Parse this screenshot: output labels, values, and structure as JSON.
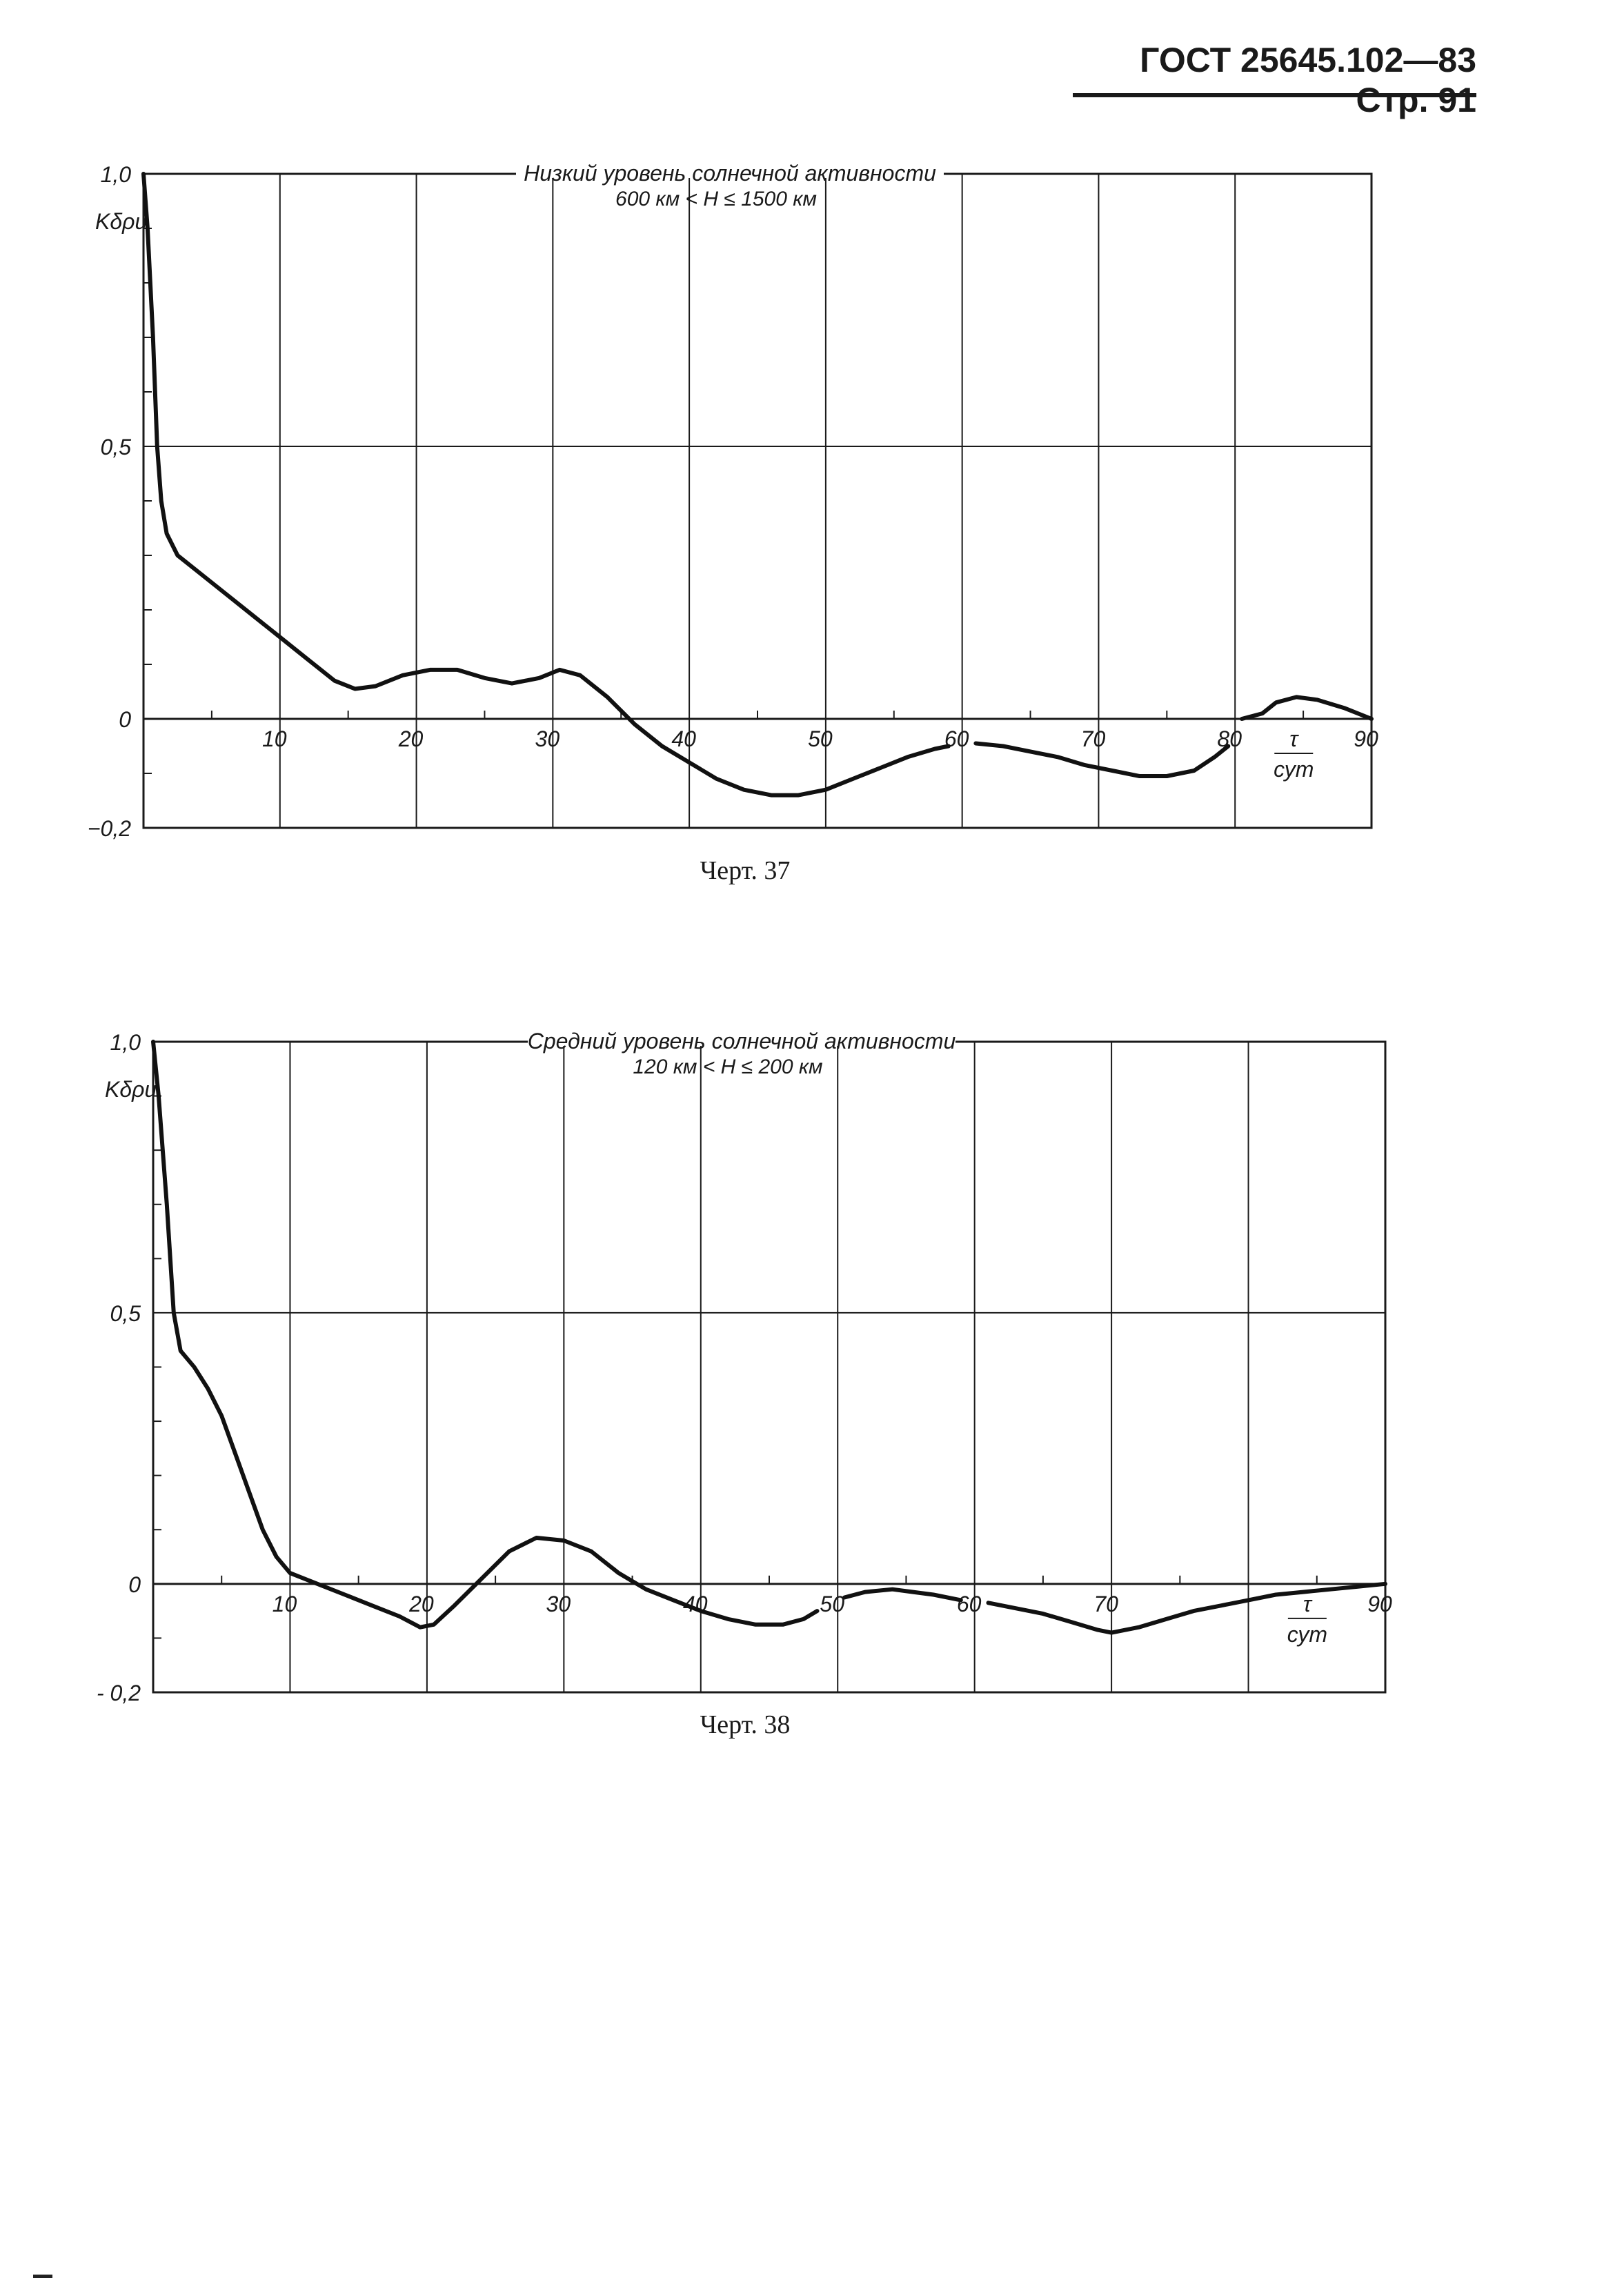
{
  "header": {
    "text": "ГОСТ 25645.102—83 Стр. 91"
  },
  "captions": [
    "Черт. 37",
    "Черт. 38"
  ],
  "chart_data": [
    {
      "type": "line",
      "title": "Низкий уровень солнечной активности",
      "subtitle": "600 км < H ≤ 1500 км",
      "ylabel": "Kδρи",
      "xlabel": "τ / сут",
      "xlim": [
        0,
        90
      ],
      "ylim": [
        -0.2,
        1.0
      ],
      "x_ticks": [
        10,
        20,
        30,
        40,
        50,
        60,
        70,
        80,
        90
      ],
      "y_ticks": [
        "1,0",
        "0,5",
        "0",
        "−0,2"
      ],
      "y_tick_values": [
        1.0,
        0.5,
        0,
        -0.2
      ],
      "grid": true,
      "series": [
        {
          "segments": [
            [
              [
                0,
                1.0
              ],
              [
                0.3,
                0.9
              ],
              [
                0.7,
                0.7
              ],
              [
                1,
                0.5
              ],
              [
                1.3,
                0.4
              ],
              [
                1.7,
                0.34
              ],
              [
                2.5,
                0.3
              ],
              [
                4,
                0.27
              ],
              [
                6,
                0.23
              ],
              [
                8,
                0.19
              ],
              [
                10,
                0.15
              ],
              [
                12,
                0.11
              ],
              [
                14,
                0.07
              ],
              [
                15.5,
                0.055
              ],
              [
                17,
                0.06
              ],
              [
                19,
                0.08
              ],
              [
                21,
                0.09
              ],
              [
                23,
                0.09
              ],
              [
                25,
                0.075
              ],
              [
                27,
                0.065
              ],
              [
                29,
                0.075
              ],
              [
                30.5,
                0.09
              ],
              [
                32,
                0.08
              ],
              [
                34,
                0.04
              ],
              [
                36,
                -0.01
              ],
              [
                38,
                -0.05
              ],
              [
                40,
                -0.08
              ],
              [
                42,
                -0.11
              ],
              [
                44,
                -0.13
              ],
              [
                46,
                -0.14
              ],
              [
                48,
                -0.14
              ],
              [
                50,
                -0.13
              ],
              [
                52,
                -0.11
              ],
              [
                54,
                -0.09
              ],
              [
                56,
                -0.07
              ],
              [
                58,
                -0.055
              ],
              [
                59,
                -0.05
              ]
            ],
            [
              [
                61,
                -0.045
              ],
              [
                63,
                -0.05
              ],
              [
                65,
                -0.06
              ],
              [
                67,
                -0.07
              ],
              [
                69,
                -0.085
              ],
              [
                71,
                -0.095
              ],
              [
                73,
                -0.105
              ],
              [
                75,
                -0.105
              ],
              [
                77,
                -0.095
              ],
              [
                78.5,
                -0.07
              ],
              [
                79.5,
                -0.05
              ]
            ],
            [
              [
                80.5,
                0
              ],
              [
                82,
                0.01
              ],
              [
                83,
                0.03
              ],
              [
                84.5,
                0.04
              ],
              [
                86,
                0.035
              ],
              [
                88,
                0.02
              ],
              [
                90,
                0
              ]
            ]
          ]
        }
      ]
    },
    {
      "type": "line",
      "title": "Средний уровень солнечной активности",
      "subtitle": "120 км < H ≤ 200 км",
      "ylabel": "Kδρи",
      "xlabel": "τ / сут",
      "xlim": [
        0,
        90
      ],
      "ylim": [
        -0.2,
        1.0
      ],
      "x_ticks": [
        10,
        20,
        30,
        40,
        50,
        60,
        70,
        90
      ],
      "y_ticks": [
        "1,0",
        "0,5",
        "0",
        "- 0,2"
      ],
      "y_tick_values": [
        1.0,
        0.5,
        0,
        -0.2
      ],
      "grid": true,
      "series": [
        {
          "segments": [
            [
              [
                0,
                1.0
              ],
              [
                0.4,
                0.9
              ],
              [
                1,
                0.7
              ],
              [
                1.5,
                0.5
              ],
              [
                2,
                0.43
              ],
              [
                3,
                0.4
              ],
              [
                4,
                0.36
              ],
              [
                5,
                0.31
              ],
              [
                6,
                0.24
              ],
              [
                7,
                0.17
              ],
              [
                8,
                0.1
              ],
              [
                9,
                0.05
              ],
              [
                10,
                0.02
              ],
              [
                12,
                0
              ],
              [
                14,
                -0.02
              ],
              [
                16,
                -0.04
              ],
              [
                18,
                -0.06
              ],
              [
                19.5,
                -0.08
              ],
              [
                20.5,
                -0.075
              ],
              [
                22,
                -0.04
              ],
              [
                24,
                0.01
              ],
              [
                26,
                0.06
              ],
              [
                28,
                0.085
              ],
              [
                30,
                0.08
              ],
              [
                32,
                0.06
              ],
              [
                34,
                0.02
              ],
              [
                36,
                -0.01
              ],
              [
                38,
                -0.03
              ],
              [
                40,
                -0.05
              ],
              [
                42,
                -0.065
              ],
              [
                44,
                -0.075
              ],
              [
                46,
                -0.075
              ],
              [
                47.5,
                -0.065
              ],
              [
                48.5,
                -0.05
              ]
            ],
            [
              [
                50.5,
                -0.025
              ],
              [
                52,
                -0.015
              ],
              [
                54,
                -0.01
              ],
              [
                55.5,
                -0.015
              ],
              [
                57,
                -0.02
              ],
              [
                59,
                -0.03
              ]
            ],
            [
              [
                61,
                -0.035
              ],
              [
                63,
                -0.045
              ],
              [
                65,
                -0.055
              ],
              [
                67,
                -0.07
              ],
              [
                69,
                -0.085
              ],
              [
                70,
                -0.09
              ],
              [
                72,
                -0.08
              ],
              [
                74,
                -0.065
              ],
              [
                76,
                -0.05
              ],
              [
                78,
                -0.04
              ],
              [
                80,
                -0.03
              ],
              [
                82,
                -0.02
              ],
              [
                84,
                -0.015
              ],
              [
                86,
                -0.01
              ],
              [
                88,
                -0.005
              ],
              [
                90,
                0
              ]
            ]
          ]
        }
      ]
    }
  ]
}
